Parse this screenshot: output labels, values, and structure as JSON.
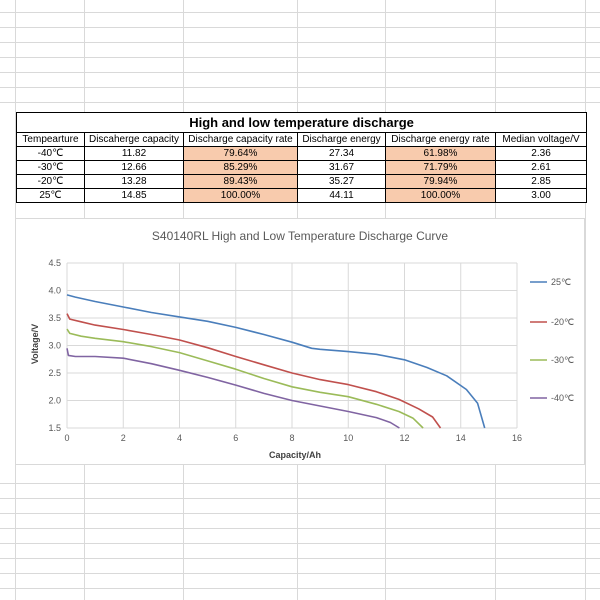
{
  "table": {
    "title": "High and low temperature discharge",
    "headers": [
      "Tempearture",
      "Discaherge capacity",
      "Discharge capacity rate",
      "Discharge energy",
      "Discharge energy rate",
      "Median voltage/V"
    ],
    "rows": [
      [
        "-40℃",
        "11.82",
        "79.64%",
        "27.34",
        "61.98%",
        "2.36"
      ],
      [
        "-30℃",
        "12.66",
        "85.29%",
        "31.67",
        "71.79%",
        "2.61"
      ],
      [
        "-20℃",
        "13.28",
        "89.43%",
        "35.27",
        "79.94%",
        "2.85"
      ],
      [
        "25℃",
        "14.85",
        "100.00%",
        "44.11",
        "100.00%",
        "3.00"
      ]
    ],
    "highlight_color": "#f8cbad"
  },
  "chart_data": {
    "type": "line",
    "title": "S40140RL High and Low Temperature Discharge Curve",
    "xlabel": "Capacity/Ah",
    "ylabel": "Voltage/V",
    "xlim": [
      0,
      16
    ],
    "ylim": [
      1.5,
      4.5
    ],
    "xticks": [
      "0",
      "2",
      "4",
      "6",
      "8",
      "10",
      "12",
      "14",
      "16"
    ],
    "yticks": [
      "1.5",
      "2.0",
      "2.5",
      "3.0",
      "3.5",
      "4.0",
      "4.5"
    ],
    "grid": true,
    "legend_position": "right",
    "series": [
      {
        "name": "25℃",
        "color": "#4a7ebb",
        "points": [
          [
            0,
            3.92
          ],
          [
            0.3,
            3.88
          ],
          [
            1,
            3.8
          ],
          [
            2,
            3.7
          ],
          [
            3,
            3.6
          ],
          [
            4,
            3.52
          ],
          [
            5,
            3.44
          ],
          [
            6,
            3.33
          ],
          [
            7,
            3.2
          ],
          [
            8,
            3.06
          ],
          [
            8.7,
            2.95
          ],
          [
            9,
            2.93
          ],
          [
            10,
            2.89
          ],
          [
            11,
            2.84
          ],
          [
            12,
            2.74
          ],
          [
            12.8,
            2.6
          ],
          [
            13.5,
            2.45
          ],
          [
            14.2,
            2.2
          ],
          [
            14.6,
            1.95
          ],
          [
            14.85,
            1.5
          ]
        ]
      },
      {
        "name": "-20℃",
        "color": "#c0504d",
        "points": [
          [
            0,
            3.58
          ],
          [
            0.1,
            3.48
          ],
          [
            0.5,
            3.43
          ],
          [
            1,
            3.37
          ],
          [
            2,
            3.29
          ],
          [
            3,
            3.2
          ],
          [
            4,
            3.1
          ],
          [
            5,
            2.96
          ],
          [
            6,
            2.8
          ],
          [
            7,
            2.65
          ],
          [
            8,
            2.5
          ],
          [
            9,
            2.38
          ],
          [
            10,
            2.29
          ],
          [
            11,
            2.16
          ],
          [
            11.8,
            2.02
          ],
          [
            12.5,
            1.85
          ],
          [
            13,
            1.7
          ],
          [
            13.28,
            1.5
          ]
        ]
      },
      {
        "name": "-30℃",
        "color": "#9bbb59",
        "points": [
          [
            0,
            3.3
          ],
          [
            0.1,
            3.22
          ],
          [
            0.5,
            3.17
          ],
          [
            1,
            3.13
          ],
          [
            2,
            3.07
          ],
          [
            3,
            2.98
          ],
          [
            4,
            2.87
          ],
          [
            5,
            2.72
          ],
          [
            6,
            2.57
          ],
          [
            7,
            2.4
          ],
          [
            8,
            2.25
          ],
          [
            9,
            2.15
          ],
          [
            10,
            2.07
          ],
          [
            11,
            1.93
          ],
          [
            11.8,
            1.8
          ],
          [
            12.3,
            1.68
          ],
          [
            12.66,
            1.5
          ]
        ]
      },
      {
        "name": "-40℃",
        "color": "#8064a2",
        "points": [
          [
            0,
            2.95
          ],
          [
            0.05,
            2.82
          ],
          [
            0.3,
            2.8
          ],
          [
            1,
            2.8
          ],
          [
            2,
            2.77
          ],
          [
            3,
            2.67
          ],
          [
            4,
            2.55
          ],
          [
            5,
            2.42
          ],
          [
            6,
            2.28
          ],
          [
            7,
            2.13
          ],
          [
            8,
            2.0
          ],
          [
            9,
            1.9
          ],
          [
            10,
            1.8
          ],
          [
            11,
            1.69
          ],
          [
            11.5,
            1.6
          ],
          [
            11.82,
            1.5
          ]
        ]
      }
    ]
  }
}
